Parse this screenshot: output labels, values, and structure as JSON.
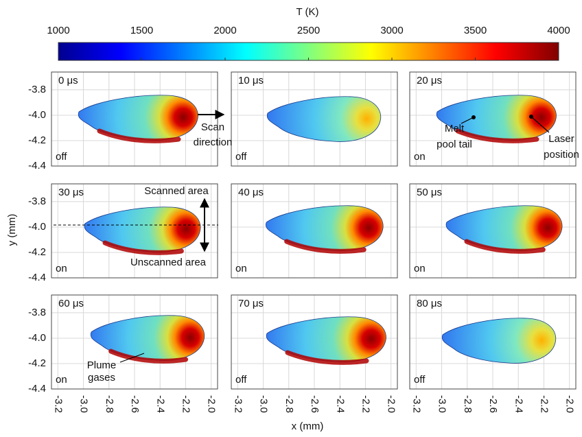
{
  "chart_data": {
    "type": "thermal-map",
    "colorbar": {
      "label": "T (K)",
      "lim": [
        1000,
        4000
      ],
      "ticks": [
        1000,
        1500,
        2000,
        2500,
        3000,
        3500,
        4000
      ]
    },
    "xlabel": "x (mm)",
    "ylabel": "y (mm)",
    "xlim": [
      -3.25,
      -1.95
    ],
    "xticks": [
      -3.2,
      {
        "value": -3,
        "label": "-3.0"
      },
      -2.8,
      -2.6,
      -2.4,
      -2.2,
      {
        "value": -2,
        "label": "-2.0"
      }
    ],
    "ylim": [
      -4.4,
      -3.66
    ],
    "yticks": [
      -3.8,
      {
        "value": -4,
        "label": "-4.0"
      },
      -4.2,
      -4.4
    ],
    "grid": true,
    "panels": [
      {
        "time": "0 μs",
        "state": "off"
      },
      {
        "time": "10 μs",
        "state": "off"
      },
      {
        "time": "20 μs",
        "state": "on"
      },
      {
        "time": "30 μs",
        "state": "on"
      },
      {
        "time": "40 μs",
        "state": "on"
      },
      {
        "time": "50 μs",
        "state": "on"
      },
      {
        "time": "60 μs",
        "state": "on"
      },
      {
        "time": "70 μs",
        "state": "off"
      },
      {
        "time": "80 μs",
        "state": "off"
      }
    ],
    "annotations": [
      {
        "lines": [
          "Scan",
          "direction"
        ]
      },
      {
        "lines": [
          "Melt",
          "pool tail"
        ]
      },
      {
        "lines": [
          "Laser",
          "position"
        ]
      },
      {
        "lines": [
          "Scanned area"
        ]
      },
      {
        "lines": [
          "Unscanned area"
        ]
      },
      {
        "lines": [
          "Plume",
          "gases"
        ]
      }
    ]
  }
}
